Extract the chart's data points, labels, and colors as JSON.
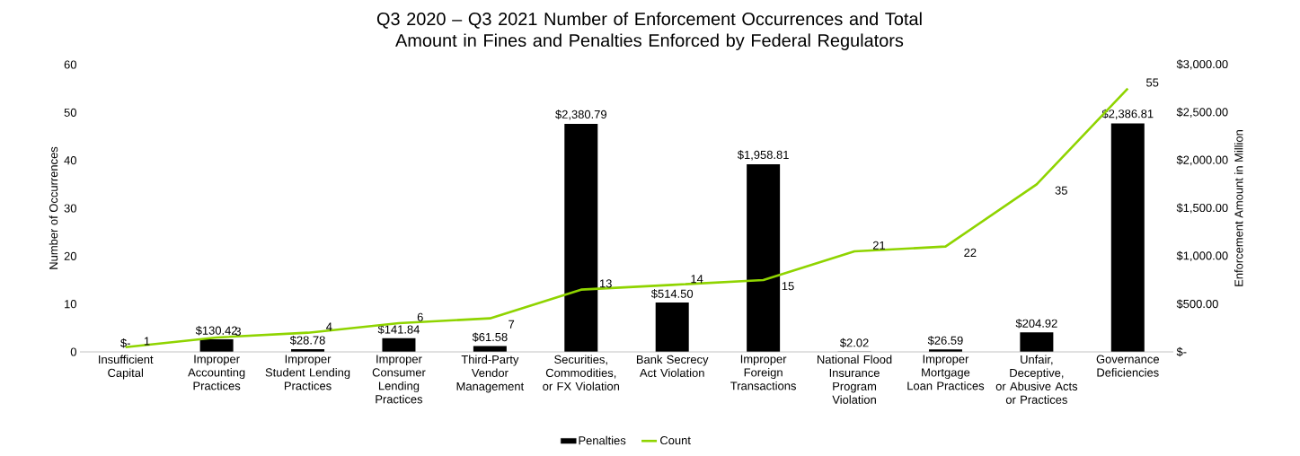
{
  "chart_data": {
    "type": "bar",
    "title": "Q3 2020 – Q3 2021 Number of Enforcement Occurrences and Total Amount in Fines and Penalties Enforced by Federal Regulators",
    "categories": [
      "Insufficient Capital",
      "Improper Accounting Practices",
      "Improper Student Lending Practices",
      "Improper Consumer Lending Practices",
      "Third-Party Vendor Management",
      "Securities, Commodities, or FX Violation",
      "Bank Secrecy Act Violation",
      "Improper Foreign Transactions",
      "National Flood Insurance Program Violation",
      "Improper Mortgage Loan Practices",
      "Unfair, Deceptive, or Abusive Acts or Practices",
      "Governance Deficiencies"
    ],
    "series": [
      {
        "name": "Penalties",
        "axis": "y2",
        "color": "#000000",
        "values": [
          0,
          130.42,
          28.78,
          141.84,
          61.58,
          2380.79,
          514.5,
          1958.81,
          2.02,
          26.59,
          204.92,
          2386.81
        ],
        "value_labels": [
          "$-",
          "$130.42",
          "$28.78",
          "$141.84",
          "$61.58",
          "$2,380.79",
          "$514.50",
          "$1,958.81",
          "$2.02",
          "$26.59",
          "$204.92",
          "$2,386.81"
        ]
      },
      {
        "name": "Count",
        "type": "line",
        "axis": "y",
        "color": "#8fd400",
        "values": [
          1,
          3,
          4,
          6,
          7,
          13,
          14,
          15,
          21,
          22,
          35,
          55
        ],
        "value_labels": [
          "1",
          "3",
          "4",
          "6",
          "7",
          "13",
          "14",
          "15",
          "21",
          "22",
          "35",
          "55"
        ]
      }
    ],
    "ylabel": "Number of Occurrences",
    "y2label": "Enforcement Amount in Million",
    "ylim": [
      0,
      60
    ],
    "yticks": [
      0,
      10,
      20,
      30,
      40,
      50,
      60
    ],
    "y2lim": [
      0,
      3000
    ],
    "y2ticks": [
      {
        "value": 0,
        "label": "$-"
      },
      {
        "value": 500,
        "label": "$500.00"
      },
      {
        "value": 1000,
        "label": "$1,000.00"
      },
      {
        "value": 1500,
        "label": "$1,500.00"
      },
      {
        "value": 2000,
        "label": "$2,000.00"
      },
      {
        "value": 2500,
        "label": "$2,500.00"
      },
      {
        "value": 3000,
        "label": "$3,000.00"
      }
    ],
    "legend": "bottom"
  }
}
